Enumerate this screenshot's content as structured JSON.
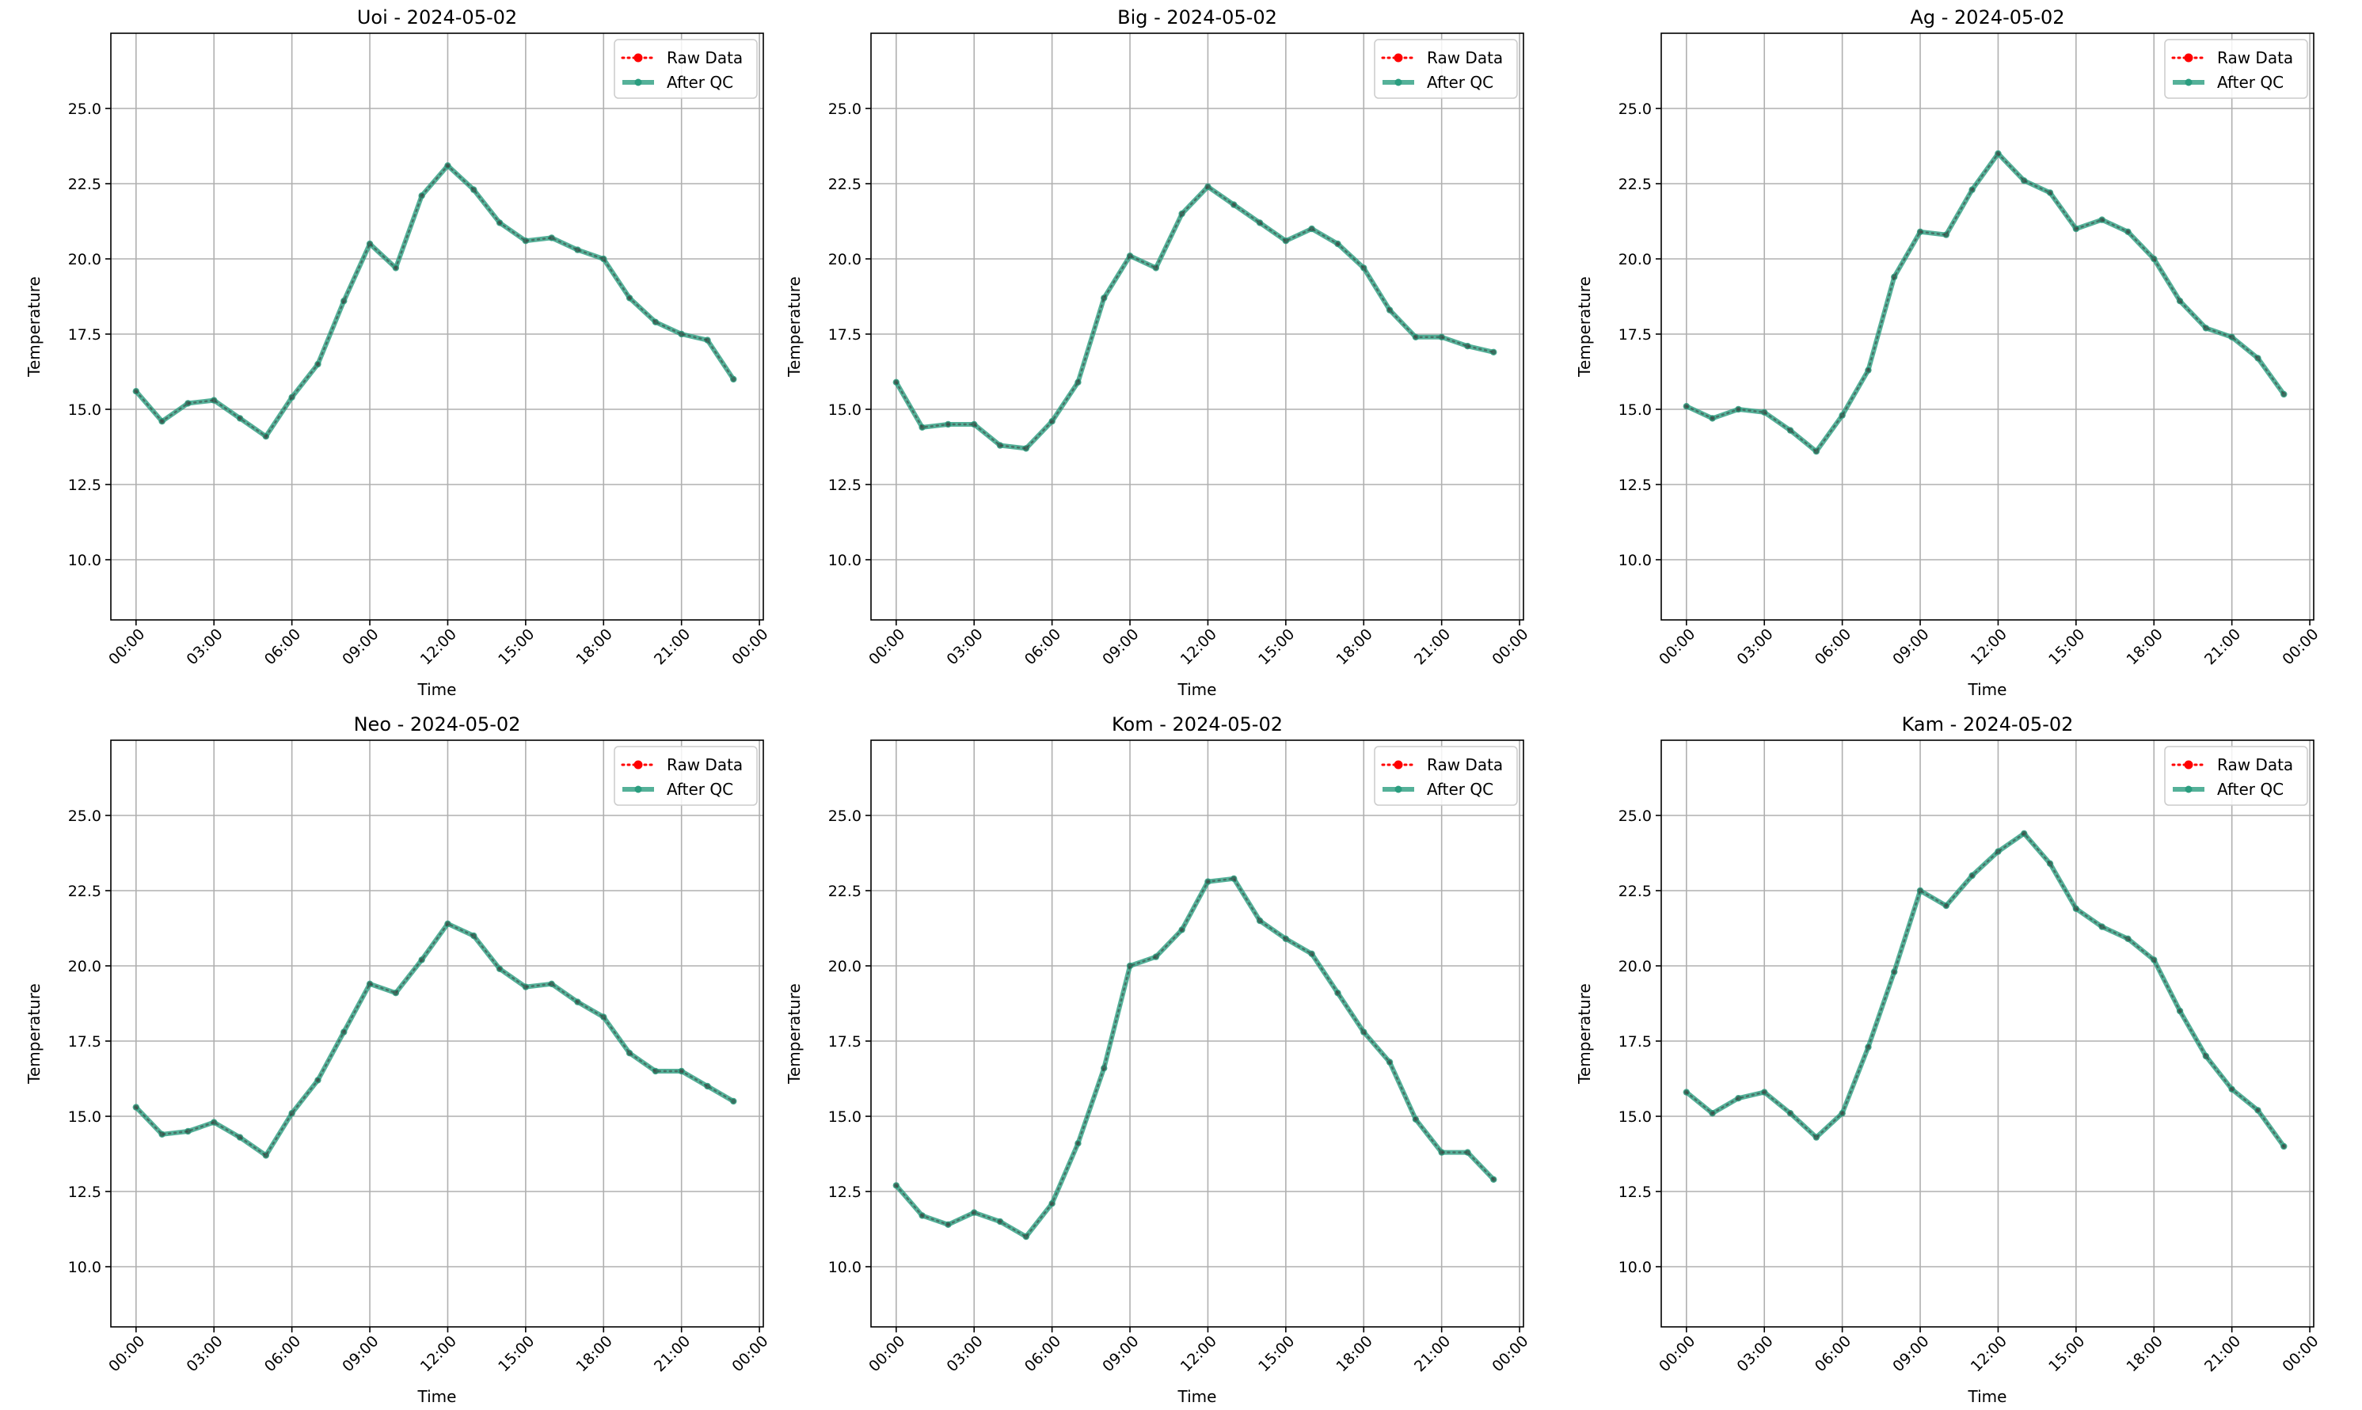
{
  "chart_data": [
    {
      "type": "line",
      "title": "Uoi - 2024-05-02",
      "xlabel": "Time",
      "ylabel": "Temperature",
      "x": [
        "00:00",
        "01:00",
        "02:00",
        "03:00",
        "04:00",
        "05:00",
        "06:00",
        "07:00",
        "08:00",
        "09:00",
        "10:00",
        "11:00",
        "12:00",
        "13:00",
        "14:00",
        "15:00",
        "16:00",
        "17:00",
        "18:00",
        "19:00",
        "20:00",
        "21:00",
        "22:00",
        "23:00"
      ],
      "x_ticks": [
        "00:00",
        "03:00",
        "06:00",
        "09:00",
        "12:00",
        "15:00",
        "18:00",
        "21:00",
        "00:00"
      ],
      "y_ticks": [
        "10.0",
        "12.5",
        "15.0",
        "17.5",
        "20.0",
        "22.5",
        "25.0"
      ],
      "ylim": [
        8.0,
        27.5
      ],
      "grid": true,
      "legend": "top-right",
      "series": [
        {
          "name": "Raw Data",
          "color": "#ff0000",
          "style": "dotted",
          "values": [
            15.6,
            14.6,
            15.2,
            15.3,
            14.7,
            14.1,
            15.4,
            16.5,
            18.6,
            20.5,
            19.7,
            22.1,
            23.1,
            22.3,
            21.2,
            20.6,
            20.7,
            20.3,
            20.0,
            18.7,
            17.9,
            17.5,
            17.3,
            16.0
          ]
        },
        {
          "name": "After QC",
          "color": "#2a9d7f",
          "style": "solid",
          "values": [
            15.6,
            14.6,
            15.2,
            15.3,
            14.7,
            14.1,
            15.4,
            16.5,
            18.6,
            20.5,
            19.7,
            22.1,
            23.1,
            22.3,
            21.2,
            20.6,
            20.7,
            20.3,
            20.0,
            18.7,
            17.9,
            17.5,
            17.3,
            16.0
          ]
        }
      ]
    },
    {
      "type": "line",
      "title": "Big - 2024-05-02",
      "xlabel": "Time",
      "ylabel": "Temperature",
      "x": [
        "00:00",
        "01:00",
        "02:00",
        "03:00",
        "04:00",
        "05:00",
        "06:00",
        "07:00",
        "08:00",
        "09:00",
        "10:00",
        "11:00",
        "12:00",
        "13:00",
        "14:00",
        "15:00",
        "16:00",
        "17:00",
        "18:00",
        "19:00",
        "20:00",
        "21:00",
        "22:00",
        "23:00"
      ],
      "x_ticks": [
        "00:00",
        "03:00",
        "06:00",
        "09:00",
        "12:00",
        "15:00",
        "18:00",
        "21:00",
        "00:00"
      ],
      "y_ticks": [
        "10.0",
        "12.5",
        "15.0",
        "17.5",
        "20.0",
        "22.5",
        "25.0"
      ],
      "ylim": [
        8.0,
        27.5
      ],
      "grid": true,
      "legend": "top-right",
      "series": [
        {
          "name": "Raw Data",
          "color": "#ff0000",
          "style": "dotted",
          "values": [
            15.9,
            14.4,
            14.5,
            14.5,
            13.8,
            13.7,
            14.6,
            15.9,
            18.7,
            20.1,
            19.7,
            21.5,
            22.4,
            21.8,
            21.2,
            20.6,
            21.0,
            20.5,
            19.7,
            18.3,
            17.4,
            17.4,
            17.1,
            16.9
          ]
        },
        {
          "name": "After QC",
          "color": "#2a9d7f",
          "style": "solid",
          "values": [
            15.9,
            14.4,
            14.5,
            14.5,
            13.8,
            13.7,
            14.6,
            15.9,
            18.7,
            20.1,
            19.7,
            21.5,
            22.4,
            21.8,
            21.2,
            20.6,
            21.0,
            20.5,
            19.7,
            18.3,
            17.4,
            17.4,
            17.1,
            16.9
          ]
        }
      ]
    },
    {
      "type": "line",
      "title": "Ag - 2024-05-02",
      "xlabel": "Time",
      "ylabel": "Temperature",
      "x": [
        "00:00",
        "01:00",
        "02:00",
        "03:00",
        "04:00",
        "05:00",
        "06:00",
        "07:00",
        "08:00",
        "09:00",
        "10:00",
        "11:00",
        "12:00",
        "13:00",
        "14:00",
        "15:00",
        "16:00",
        "17:00",
        "18:00",
        "19:00",
        "20:00",
        "21:00",
        "22:00",
        "23:00"
      ],
      "x_ticks": [
        "00:00",
        "03:00",
        "06:00",
        "09:00",
        "12:00",
        "15:00",
        "18:00",
        "21:00",
        "00:00"
      ],
      "y_ticks": [
        "10.0",
        "12.5",
        "15.0",
        "17.5",
        "20.0",
        "22.5",
        "25.0"
      ],
      "ylim": [
        8.0,
        27.5
      ],
      "grid": true,
      "legend": "top-right",
      "series": [
        {
          "name": "Raw Data",
          "color": "#ff0000",
          "style": "dotted",
          "values": [
            15.1,
            14.7,
            15.0,
            14.9,
            14.3,
            13.6,
            14.8,
            16.3,
            19.4,
            20.9,
            20.8,
            22.3,
            23.5,
            22.6,
            22.2,
            21.0,
            21.3,
            20.9,
            20.0,
            18.6,
            17.7,
            17.4,
            16.7,
            15.5
          ]
        },
        {
          "name": "After QC",
          "color": "#2a9d7f",
          "style": "solid",
          "values": [
            15.1,
            14.7,
            15.0,
            14.9,
            14.3,
            13.6,
            14.8,
            16.3,
            19.4,
            20.9,
            20.8,
            22.3,
            23.5,
            22.6,
            22.2,
            21.0,
            21.3,
            20.9,
            20.0,
            18.6,
            17.7,
            17.4,
            16.7,
            15.5
          ]
        }
      ]
    },
    {
      "type": "line",
      "title": "Neo - 2024-05-02",
      "xlabel": "Time",
      "ylabel": "Temperature",
      "x": [
        "00:00",
        "01:00",
        "02:00",
        "03:00",
        "04:00",
        "05:00",
        "06:00",
        "07:00",
        "08:00",
        "09:00",
        "10:00",
        "11:00",
        "12:00",
        "13:00",
        "14:00",
        "15:00",
        "16:00",
        "17:00",
        "18:00",
        "19:00",
        "20:00",
        "21:00",
        "22:00",
        "23:00"
      ],
      "x_ticks": [
        "00:00",
        "03:00",
        "06:00",
        "09:00",
        "12:00",
        "15:00",
        "18:00",
        "21:00",
        "00:00"
      ],
      "y_ticks": [
        "10.0",
        "12.5",
        "15.0",
        "17.5",
        "20.0",
        "22.5",
        "25.0"
      ],
      "ylim": [
        8.0,
        27.5
      ],
      "grid": true,
      "legend": "top-right",
      "series": [
        {
          "name": "Raw Data",
          "color": "#ff0000",
          "style": "dotted",
          "values": [
            15.3,
            14.4,
            14.5,
            14.8,
            14.3,
            13.7,
            15.1,
            16.2,
            17.8,
            19.4,
            19.1,
            20.2,
            21.4,
            21.0,
            19.9,
            19.3,
            19.4,
            18.8,
            18.3,
            17.1,
            16.5,
            16.5,
            16.0,
            15.5
          ]
        },
        {
          "name": "After QC",
          "color": "#2a9d7f",
          "style": "solid",
          "values": [
            15.3,
            14.4,
            14.5,
            14.8,
            14.3,
            13.7,
            15.1,
            16.2,
            17.8,
            19.4,
            19.1,
            20.2,
            21.4,
            21.0,
            19.9,
            19.3,
            19.4,
            18.8,
            18.3,
            17.1,
            16.5,
            16.5,
            16.0,
            15.5
          ]
        }
      ]
    },
    {
      "type": "line",
      "title": "Kom - 2024-05-02",
      "xlabel": "Time",
      "ylabel": "Temperature",
      "x": [
        "00:00",
        "01:00",
        "02:00",
        "03:00",
        "04:00",
        "05:00",
        "06:00",
        "07:00",
        "08:00",
        "09:00",
        "10:00",
        "11:00",
        "12:00",
        "13:00",
        "14:00",
        "15:00",
        "16:00",
        "17:00",
        "18:00",
        "19:00",
        "20:00",
        "21:00",
        "22:00",
        "23:00"
      ],
      "x_ticks": [
        "00:00",
        "03:00",
        "06:00",
        "09:00",
        "12:00",
        "15:00",
        "18:00",
        "21:00",
        "00:00"
      ],
      "y_ticks": [
        "10.0",
        "12.5",
        "15.0",
        "17.5",
        "20.0",
        "22.5",
        "25.0"
      ],
      "ylim": [
        8.0,
        27.5
      ],
      "grid": true,
      "legend": "top-right",
      "series": [
        {
          "name": "Raw Data",
          "color": "#ff0000",
          "style": "dotted",
          "values": [
            12.7,
            11.7,
            11.4,
            11.8,
            11.5,
            11.0,
            12.1,
            14.1,
            16.6,
            20.0,
            20.3,
            21.2,
            22.8,
            22.9,
            21.5,
            20.9,
            20.4,
            19.1,
            17.8,
            16.8,
            14.9,
            13.8,
            13.8,
            12.9
          ]
        },
        {
          "name": "After QC",
          "color": "#2a9d7f",
          "style": "solid",
          "values": [
            12.7,
            11.7,
            11.4,
            11.8,
            11.5,
            11.0,
            12.1,
            14.1,
            16.6,
            20.0,
            20.3,
            21.2,
            22.8,
            22.9,
            21.5,
            20.9,
            20.4,
            19.1,
            17.8,
            16.8,
            14.9,
            13.8,
            13.8,
            12.9
          ]
        }
      ]
    },
    {
      "type": "line",
      "title": "Kam - 2024-05-02",
      "xlabel": "Time",
      "ylabel": "Temperature",
      "x": [
        "00:00",
        "01:00",
        "02:00",
        "03:00",
        "04:00",
        "05:00",
        "06:00",
        "07:00",
        "08:00",
        "09:00",
        "10:00",
        "11:00",
        "12:00",
        "13:00",
        "14:00",
        "15:00",
        "16:00",
        "17:00",
        "18:00",
        "19:00",
        "20:00",
        "21:00",
        "22:00",
        "23:00"
      ],
      "x_ticks": [
        "00:00",
        "03:00",
        "06:00",
        "09:00",
        "12:00",
        "15:00",
        "18:00",
        "21:00",
        "00:00"
      ],
      "y_ticks": [
        "10.0",
        "12.5",
        "15.0",
        "17.5",
        "20.0",
        "22.5",
        "25.0"
      ],
      "ylim": [
        8.0,
        27.5
      ],
      "grid": true,
      "legend": "top-right",
      "series": [
        {
          "name": "Raw Data",
          "color": "#ff0000",
          "style": "dotted",
          "values": [
            15.8,
            15.1,
            15.6,
            15.8,
            15.1,
            14.3,
            15.1,
            17.3,
            19.8,
            22.5,
            22.0,
            23.0,
            23.8,
            24.4,
            23.4,
            21.9,
            21.3,
            20.9,
            20.2,
            18.5,
            17.0,
            15.9,
            15.2,
            14.0
          ]
        },
        {
          "name": "After QC",
          "color": "#2a9d7f",
          "style": "solid",
          "values": [
            15.8,
            15.1,
            15.6,
            15.8,
            15.1,
            14.3,
            15.1,
            17.3,
            19.8,
            22.5,
            22.0,
            23.0,
            23.8,
            24.4,
            23.4,
            21.9,
            21.3,
            20.9,
            20.2,
            18.5,
            17.0,
            15.9,
            15.2,
            14.0
          ]
        }
      ]
    }
  ]
}
